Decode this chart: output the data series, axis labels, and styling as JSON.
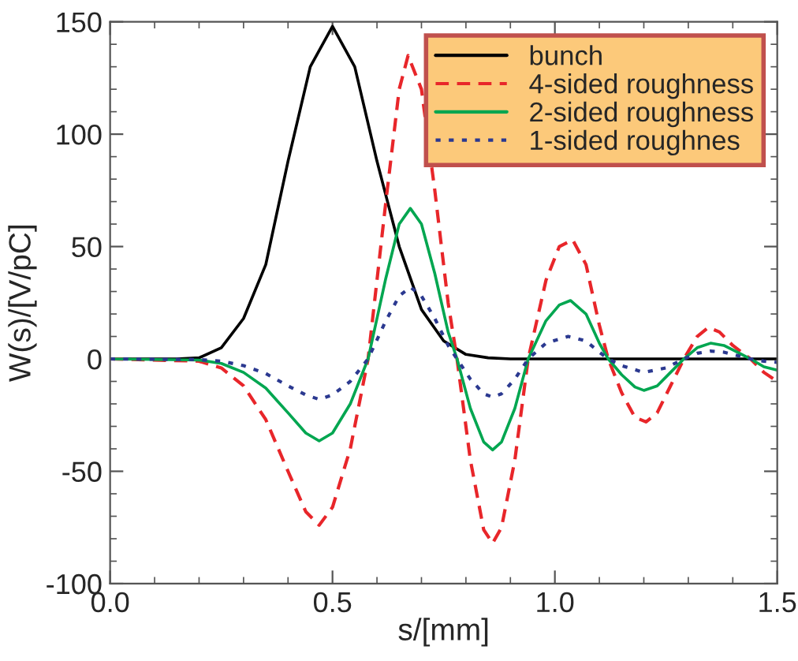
{
  "chart_data": {
    "type": "line",
    "xlabel": "s/[mm]",
    "ylabel": "W(s)/[V/pC]",
    "xlim": [
      0,
      1.5
    ],
    "xticks": [
      {
        "value": 0,
        "label": "0.0"
      },
      {
        "value": 0.5,
        "label": "0.5"
      },
      {
        "value": 1.0,
        "label": "1.0"
      },
      {
        "value": 1.5,
        "label": "1.5"
      }
    ],
    "ylim": [
      -100,
      150
    ],
    "yticks": [
      -100,
      -50,
      0,
      50,
      100,
      150
    ],
    "grid": false,
    "legend": "top right",
    "marker": "none",
    "series": [
      {
        "name": "bunch",
        "color": "#000000",
        "line_style": "solid",
        "x": [
          0,
          0.15,
          0.2,
          0.25,
          0.3,
          0.35,
          0.4,
          0.45,
          0.5,
          0.55,
          0.6,
          0.65,
          0.7,
          0.75,
          0.8,
          0.85,
          0.9,
          1.0,
          1.2,
          1.5
        ],
        "values": [
          0,
          0,
          0.5,
          5,
          18,
          42,
          88,
          130,
          148,
          130,
          88,
          50,
          22,
          8,
          2,
          0.5,
          0,
          0,
          0,
          0
        ]
      },
      {
        "name": "4-sided roughness",
        "color": "#e8262a",
        "line_style": "dashed",
        "x": [
          0,
          0.2,
          0.25,
          0.3,
          0.35,
          0.4,
          0.44,
          0.47,
          0.5,
          0.54,
          0.58,
          0.62,
          0.65,
          0.67,
          0.7,
          0.73,
          0.76,
          0.78,
          0.81,
          0.84,
          0.86,
          0.88,
          0.91,
          0.94,
          0.98,
          1.01,
          1.04,
          1.07,
          1.1,
          1.12,
          1.15,
          1.18,
          1.205,
          1.23,
          1.26,
          1.29,
          1.32,
          1.345,
          1.37,
          1.4,
          1.44,
          1.47,
          1.5
        ],
        "values": [
          0,
          -1,
          -4,
          -12,
          -27,
          -50,
          -68,
          -74,
          -66,
          -40,
          0,
          70,
          120,
          135,
          120,
          75,
          25,
          0,
          -45,
          -76,
          -82,
          -75,
          -45,
          0,
          35,
          50,
          53,
          42,
          15,
          0,
          -15,
          -26,
          -28,
          -24,
          -12,
          0,
          10,
          14,
          12,
          6,
          0,
          -6,
          -10
        ]
      },
      {
        "name": "2-sided roughness",
        "color": "#00a650",
        "line_style": "solid",
        "x": [
          0,
          0.2,
          0.25,
          0.3,
          0.35,
          0.4,
          0.44,
          0.47,
          0.5,
          0.54,
          0.58,
          0.62,
          0.65,
          0.675,
          0.7,
          0.73,
          0.76,
          0.78,
          0.81,
          0.84,
          0.86,
          0.88,
          0.91,
          0.94,
          0.98,
          1.01,
          1.035,
          1.07,
          1.1,
          1.12,
          1.15,
          1.18,
          1.2,
          1.23,
          1.26,
          1.29,
          1.32,
          1.35,
          1.38,
          1.41,
          1.44,
          1.47,
          1.5
        ],
        "values": [
          0,
          -0.5,
          -2,
          -6,
          -13,
          -24,
          -33,
          -36.5,
          -33,
          -20,
          0,
          36,
          60,
          67,
          60,
          38,
          12,
          0,
          -22,
          -37,
          -40.5,
          -37,
          -22,
          0,
          17,
          24,
          26,
          20,
          7,
          0,
          -7,
          -12.5,
          -14,
          -12,
          -6,
          0,
          5,
          7,
          6,
          3,
          0,
          -3.5,
          -5
        ]
      },
      {
        "name": "1-sided roughnes",
        "color": "#2b3990",
        "line_style": "dotted",
        "x": [
          0,
          0.2,
          0.25,
          0.3,
          0.35,
          0.4,
          0.44,
          0.47,
          0.5,
          0.54,
          0.58,
          0.62,
          0.65,
          0.675,
          0.7,
          0.73,
          0.76,
          0.78,
          0.81,
          0.84,
          0.86,
          0.88,
          0.91,
          0.94,
          0.98,
          1.03,
          1.07,
          1.1,
          1.12,
          1.15,
          1.2,
          1.25,
          1.29,
          1.32,
          1.35,
          1.38,
          1.41,
          1.44,
          1.47,
          1.5
        ],
        "values": [
          0,
          -0.3,
          -1,
          -3,
          -6.5,
          -12,
          -16,
          -18,
          -16,
          -10,
          0,
          17,
          28,
          32,
          28,
          18,
          6,
          0,
          -9,
          -15.5,
          -17,
          -15.5,
          -9,
          0,
          7,
          10,
          8,
          3,
          0,
          -3,
          -6,
          -4,
          0,
          2.5,
          3.5,
          3,
          1.5,
          0,
          -1,
          -1.5
        ]
      }
    ]
  }
}
